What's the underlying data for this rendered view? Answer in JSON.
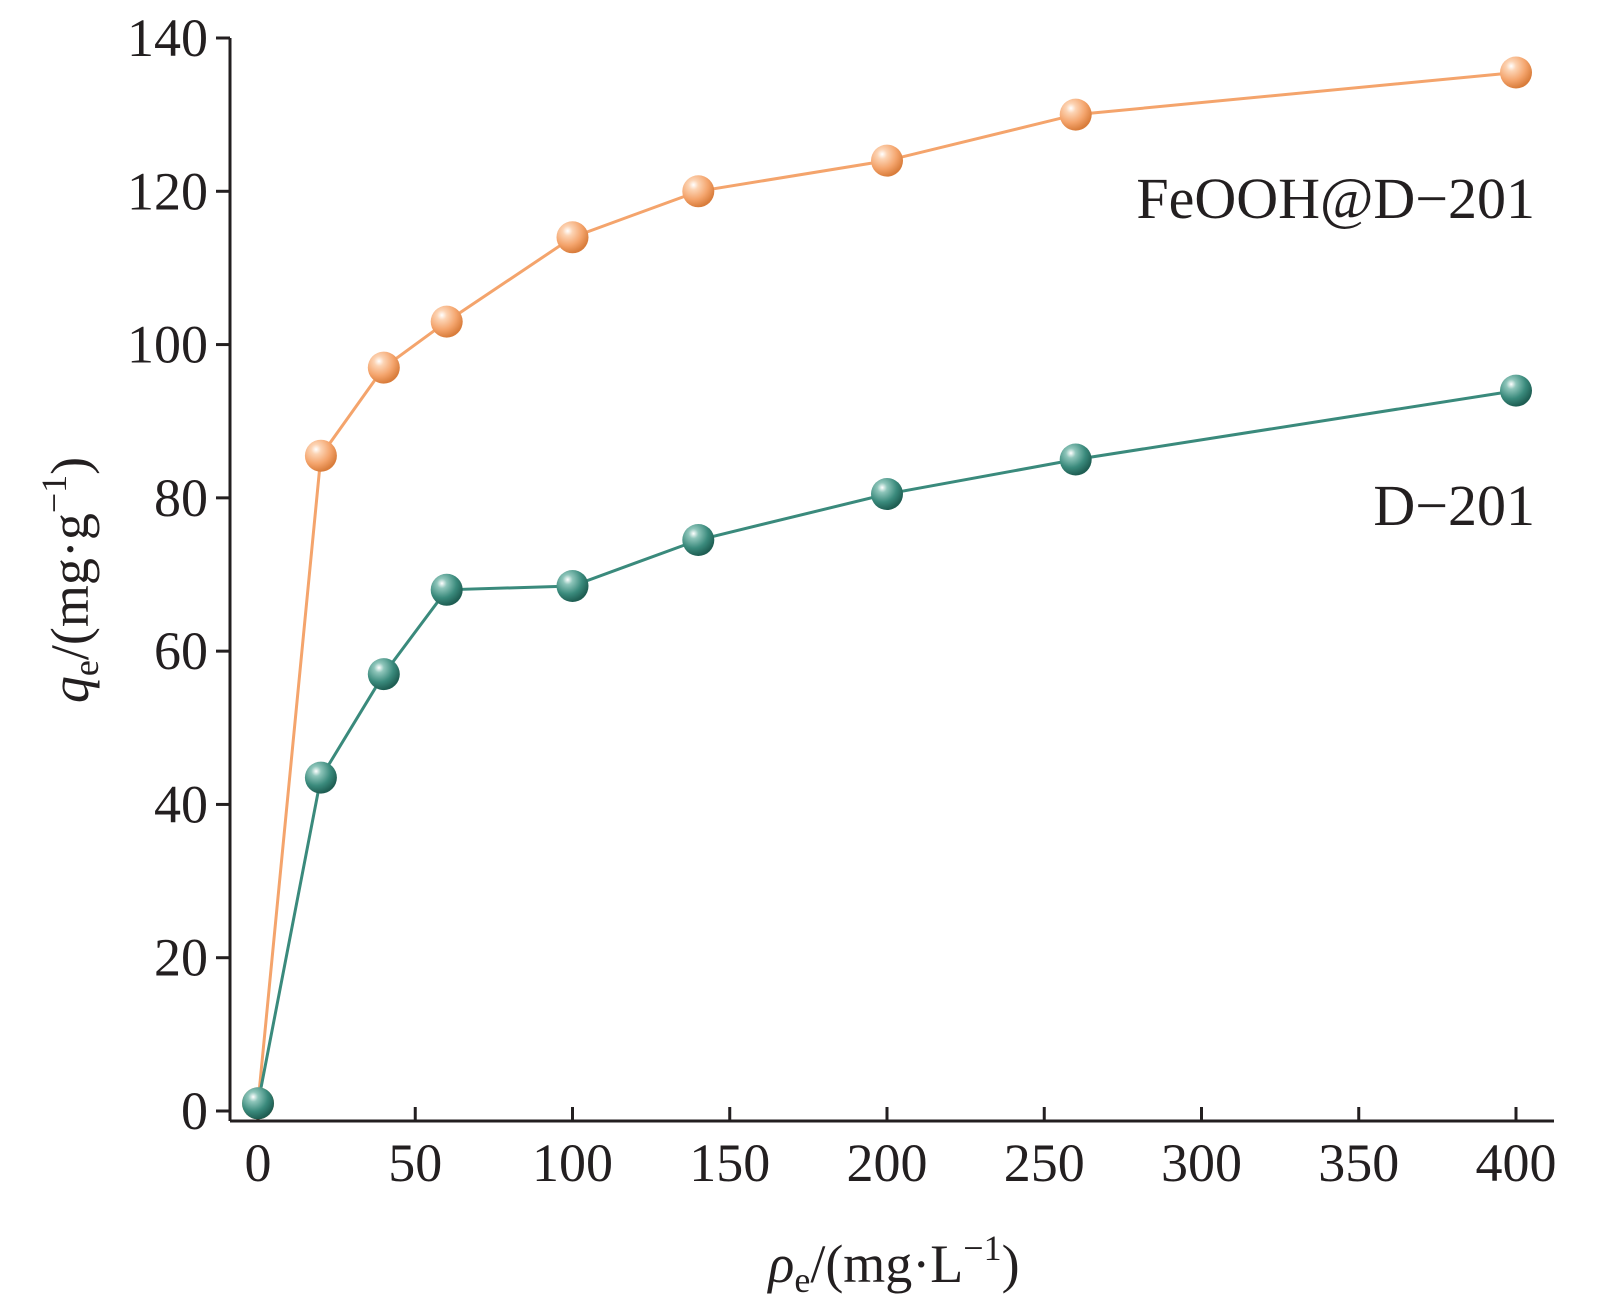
{
  "chart_data": {
    "type": "line",
    "xlabel": {
      "symbol": "ρ",
      "subscript": "e",
      "unit_open": "/(mg·L",
      "superscript": "−1",
      "unit_close": ")"
    },
    "ylabel": {
      "symbol": "q",
      "subscript": "e",
      "unit_open": "/(mg·g",
      "superscript": "−1",
      "unit_close": ")"
    },
    "xlim": [
      0,
      400
    ],
    "ylim": [
      0,
      140
    ],
    "xticks": [
      0,
      50,
      100,
      150,
      200,
      250,
      300,
      350,
      400
    ],
    "yticks": [
      0,
      20,
      40,
      60,
      80,
      100,
      120,
      140
    ],
    "grid": false,
    "series": [
      {
        "name": "FeOOH@D−201",
        "color": "#f4a46c",
        "x": [
          0,
          20,
          40,
          60,
          100,
          140,
          200,
          260,
          400
        ],
        "y": [
          1,
          85.5,
          97,
          103,
          114,
          120,
          124,
          130,
          135.5
        ]
      },
      {
        "name": "D−201",
        "color": "#3a8a7c",
        "x": [
          0,
          20,
          40,
          60,
          100,
          140,
          200,
          260,
          400
        ],
        "y": [
          1,
          43.5,
          57,
          68,
          68.5,
          74.5,
          80.5,
          85,
          94
        ]
      }
    ]
  }
}
